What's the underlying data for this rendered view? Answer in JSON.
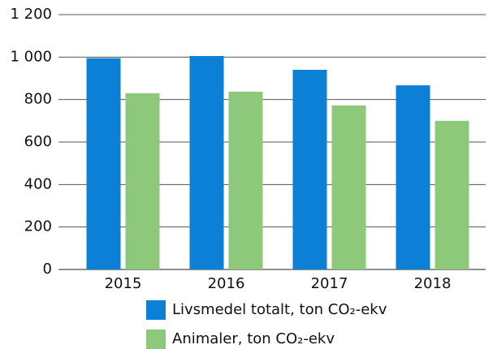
{
  "chart_data": {
    "type": "bar",
    "categories": [
      "2015",
      "2016",
      "2017",
      "2018"
    ],
    "series": [
      {
        "name": "Livsmedel totalt, ton CO₂-ekv",
        "color": "#0b80d6",
        "values": [
          995,
          1005,
          940,
          867
        ]
      },
      {
        "name": "Animaler, ton CO₂-ekv",
        "color": "#8ec97b",
        "values": [
          830,
          837,
          772,
          700
        ]
      }
    ],
    "ylim": [
      0,
      1200
    ],
    "yticks": [
      0,
      200,
      400,
      600,
      800,
      {
        "value": 1000,
        "label": "1 000"
      },
      {
        "value": 1200,
        "label": "1 200"
      }
    ],
    "grid": true
  }
}
